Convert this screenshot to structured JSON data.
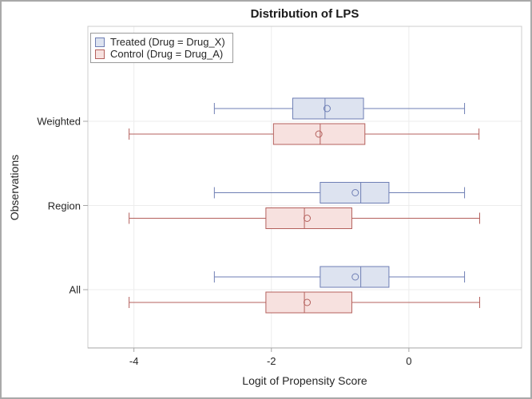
{
  "chart_data": {
    "type": "boxplot",
    "orientation": "horizontal",
    "title": "Distribution of LPS",
    "xlabel": "Logit of Propensity Score",
    "ylabel": "Observations",
    "categories": [
      "Weighted",
      "Region",
      "All"
    ],
    "x_ticks": [
      -4,
      -2,
      0
    ],
    "xlim": [
      -4.67,
      1.64
    ],
    "grid": true,
    "legend_position": "top-left-inside",
    "series": [
      {
        "name": "Treated (Drug = Drug_X)",
        "key": "treated",
        "fill": "#dde3f0",
        "stroke": "#6e7eb4",
        "boxes": [
          {
            "category": "Weighted",
            "min": -2.83,
            "q1": -1.69,
            "median": -1.22,
            "mean": -1.19,
            "q3": -0.66,
            "max": 0.81
          },
          {
            "category": "Region",
            "min": -2.83,
            "q1": -1.29,
            "median": -0.7,
            "mean": -0.78,
            "q3": -0.29,
            "max": 0.81
          },
          {
            "category": "All",
            "min": -2.83,
            "q1": -1.29,
            "median": -0.7,
            "mean": -0.78,
            "q3": -0.29,
            "max": 0.81
          }
        ]
      },
      {
        "name": "Control (Drug = Drug_A)",
        "key": "control",
        "fill": "#f7e1df",
        "stroke": "#b4605c",
        "boxes": [
          {
            "category": "Weighted",
            "min": -4.07,
            "q1": -1.97,
            "median": -1.29,
            "mean": -1.31,
            "q3": -0.64,
            "max": 1.02
          },
          {
            "category": "Region",
            "min": -4.07,
            "q1": -2.08,
            "median": -1.52,
            "mean": -1.48,
            "q3": -0.83,
            "max": 1.03
          },
          {
            "category": "All",
            "min": -4.07,
            "q1": -2.08,
            "median": -1.52,
            "mean": -1.48,
            "q3": -0.83,
            "max": 1.03
          }
        ]
      }
    ],
    "colors": {
      "grid": "#ececec",
      "frame": "#cccccc",
      "axis": "#a6a6a6",
      "text": "#262626",
      "outer_border": "#a9a9a9",
      "background": "#ffffff"
    }
  }
}
